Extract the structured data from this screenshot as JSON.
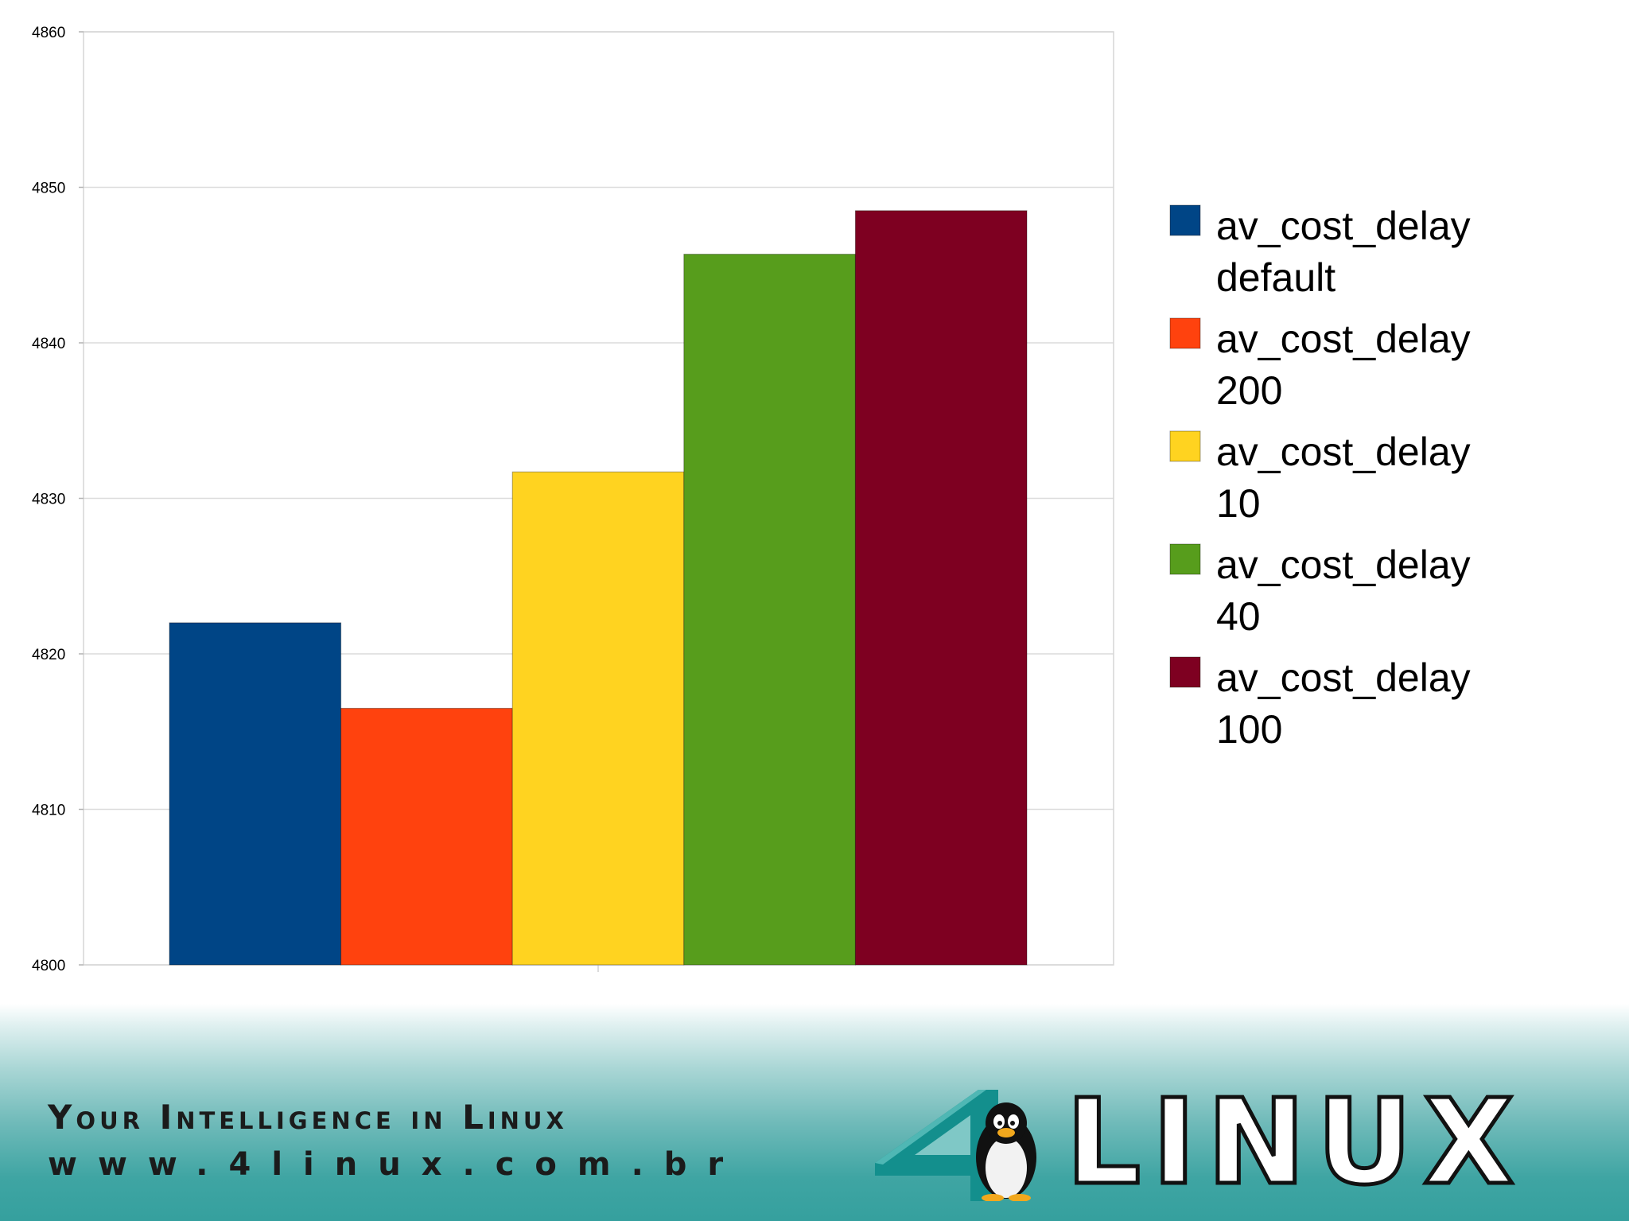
{
  "chart_data": {
    "type": "bar",
    "ylim": [
      4800,
      4860
    ],
    "yticks": [
      4800,
      4810,
      4820,
      4830,
      4840,
      4850,
      4860
    ],
    "grid": true,
    "legend_position": "right",
    "series": [
      {
        "name": "av_cost_delay default",
        "value": 4822,
        "color": "#004586"
      },
      {
        "name": "av_cost_delay 200",
        "value": 4816.5,
        "color": "#ff420e"
      },
      {
        "name": "av_cost_delay 10",
        "value": 4831.7,
        "color": "#ffd320"
      },
      {
        "name": "av_cost_delay 40",
        "value": 4845.7,
        "color": "#579d1c"
      },
      {
        "name": "av_cost_delay 100",
        "value": 4848.5,
        "color": "#7e0021"
      }
    ]
  },
  "footer": {
    "tagline": "Your Intelligence in Linux",
    "website": "www.4linux.com.br",
    "logo_text": "LINUX",
    "logo_digit": "4"
  }
}
